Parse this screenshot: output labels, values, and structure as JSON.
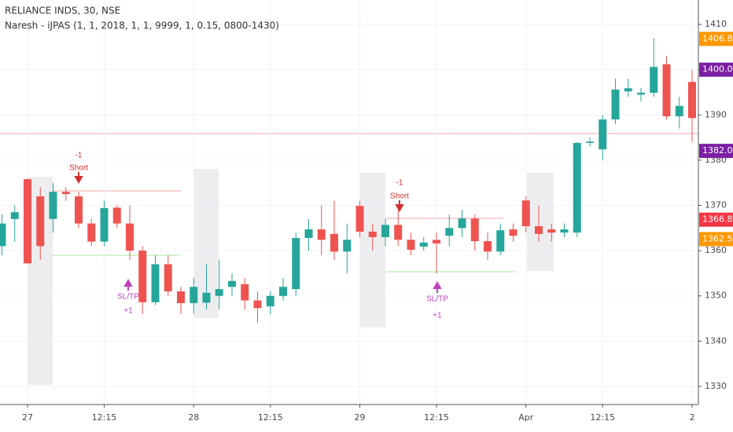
{
  "title": "RELIANCE INDS, 30, NSE",
  "indicator": "Naresh - iJPAS (1, 1, 2018, 1, 1, 9999, 1, 0.15, 0800-1430)",
  "chart_data": {
    "type": "candlestick",
    "categories": [
      null,
      null,
      "27",
      null,
      null,
      null,
      null,
      null,
      "12:15",
      null,
      null,
      null,
      null,
      null,
      null,
      "28",
      null,
      null,
      null,
      null,
      null,
      "12:15",
      null,
      null,
      null,
      null,
      null,
      null,
      "29",
      null,
      null,
      null,
      null,
      null,
      "12:15",
      null,
      null,
      null,
      null,
      null,
      null,
      "Apr",
      null,
      null,
      null,
      null,
      null,
      "12:15",
      null,
      null,
      null,
      null,
      null,
      null,
      "2"
    ],
    "open": [
      1361,
      1367,
      1375.8,
      1372,
      1367,
      1373,
      1372,
      1366,
      1362,
      1369.5,
      1366,
      1360,
      1348.6,
      1357,
      1351,
      1348.4,
      1348.5,
      1350,
      1352,
      1352.6,
      1349,
      1347.7,
      1350,
      1351.5,
      1362.8,
      1364.7,
      1363.7,
      1359.8,
      1369.9,
      1364.2,
      1363,
      1365.7,
      1362.4,
      1360.9,
      1362.4,
      1363.3,
      1365,
      1367.1,
      1362.1,
      1359.8,
      1364.7,
      1371.1,
      1365.4,
      1364.7,
      1364,
      1364,
      1383.8,
      1382.4,
      1389,
      1395.2,
      1394.5,
      1394.9,
      1401.2,
      1389.7,
      1397.3
    ],
    "high": [
      1368,
      1370,
      1376,
      1374,
      1375,
      1374,
      1373,
      1367,
      1371,
      1370,
      1370,
      1361,
      1359,
      1359,
      1352,
      1354,
      1357,
      1358,
      1355,
      1354,
      1351,
      1351,
      1354,
      1364,
      1367,
      1370,
      1371,
      1366,
      1371,
      1366,
      1367,
      1369,
      1364,
      1363,
      1364,
      1368,
      1369,
      1368,
      1364,
      1366,
      1366,
      1372,
      1370,
      1366,
      1366,
      1384,
      1385,
      1390,
      1398,
      1398,
      1396,
      1407,
      1403,
      1394,
      1400
    ],
    "low": [
      1359,
      1362,
      1357,
      1358,
      1364,
      1371,
      1365,
      1361,
      1361,
      1365,
      1358,
      1346,
      1348,
      1350,
      1346,
      1346,
      1347,
      1347,
      1350,
      1347,
      1344,
      1346,
      1349,
      1350,
      1360,
      1359,
      1358,
      1355,
      1363,
      1360,
      1361,
      1361,
      1359,
      1360,
      1355,
      1361,
      1363,
      1360,
      1358,
      1359,
      1362,
      1364,
      1362,
      1362,
      1363,
      1363,
      1383,
      1380,
      1388,
      1394,
      1393,
      1394,
      1389,
      1387,
      1384
    ],
    "close": [
      1366,
      1368.5,
      1357.2,
      1361,
      1373,
      1372.5,
      1366,
      1362,
      1369.4,
      1366,
      1360,
      1348.6,
      1357,
      1351,
      1348.4,
      1352,
      1350.7,
      1351.5,
      1353.3,
      1349,
      1347.3,
      1350,
      1352,
      1362.8,
      1364.7,
      1362.4,
      1359.8,
      1362.4,
      1364.2,
      1363,
      1365.7,
      1362.4,
      1360.2,
      1361.8,
      1361.6,
      1365,
      1367.1,
      1362.1,
      1359.8,
      1364.5,
      1363.3,
      1365.4,
      1363.7,
      1364,
      1364.7,
      1383.8,
      1384.1,
      1389,
      1395.6,
      1395.9,
      1394.9,
      1400.6,
      1389.7,
      1392,
      1389.3
    ],
    "up_color": "#26a69a",
    "down_color": "#ef5350",
    "ylim": [
      1326,
      1415.4
    ],
    "yticks": [
      1330,
      1340,
      1350,
      1360,
      1370,
      1380,
      1390,
      1400,
      1410
    ],
    "grid": true,
    "price_labels": [
      {
        "value": 1406.8,
        "label": "1406.80",
        "color": "#ff9800"
      },
      {
        "value": 1400,
        "label": "1400.00",
        "color": "#7b1fa2"
      },
      {
        "value": 1382.05,
        "label": "1382.05",
        "color": "#7b1fa2"
      },
      {
        "value": 1366.85,
        "label": "1366.85",
        "color": "#f23645"
      },
      {
        "value": 1362.55,
        "label": "1362.55",
        "color": "#ff9800"
      }
    ],
    "annotations": [
      "-1",
      "Short",
      "SL/TP",
      "+1",
      "-1",
      "Short",
      "SL/TP",
      "+1"
    ]
  }
}
